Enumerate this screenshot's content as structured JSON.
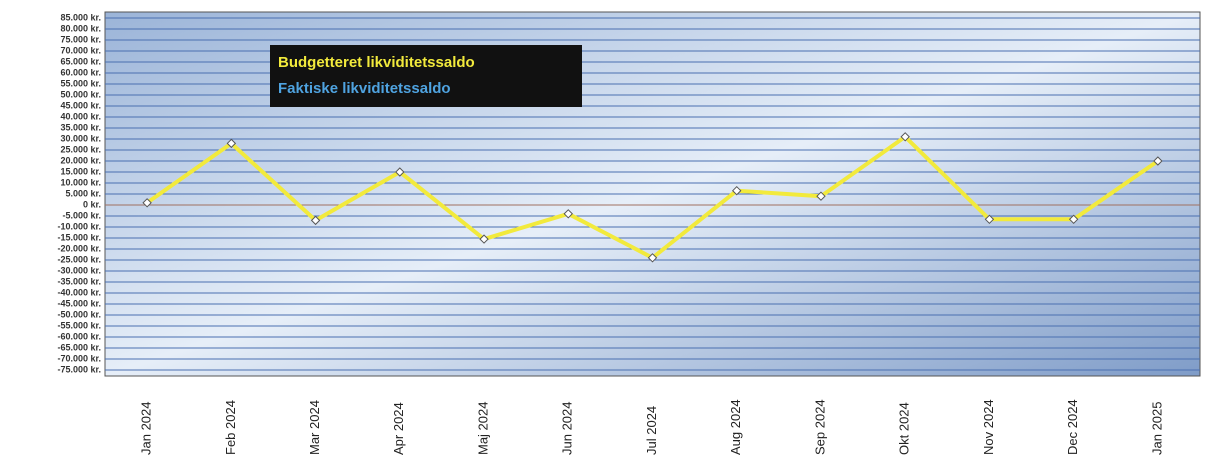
{
  "chart_data": {
    "type": "line",
    "categories": [
      "Jan 2024",
      "Feb 2024",
      "Mar 2024",
      "Apr 2024",
      "Maj 2024",
      "Jun 2024",
      "Jul 2024",
      "Aug 2024",
      "Sep 2024",
      "Okt 2024",
      "Nov 2024",
      "Dec 2024",
      "Jan 2025"
    ],
    "series": [
      {
        "name": "Budgetteret likviditetssaldo",
        "color": "#f2ea3c",
        "values": [
          1000,
          28000,
          -7000,
          15000,
          -15500,
          -4000,
          -24000,
          6500,
          4000,
          31000,
          -6500,
          -6500,
          20000
        ]
      },
      {
        "name": "Faktiske likviditetssaldo",
        "color": "#4fa3e0",
        "values": [
          null,
          null,
          null,
          null,
          null,
          null,
          null,
          null,
          null,
          null,
          null,
          null,
          null
        ]
      }
    ],
    "ylim": [
      -75000,
      85000
    ],
    "yticks": [
      {
        "value": 85000,
        "label": "85.000 kr."
      },
      {
        "value": 80000,
        "label": "80.000 kr."
      },
      {
        "value": 75000,
        "label": "75.000 kr."
      },
      {
        "value": 70000,
        "label": "70.000 kr."
      },
      {
        "value": 65000,
        "label": "65.000 kr."
      },
      {
        "value": 60000,
        "label": "60.000 kr."
      },
      {
        "value": 55000,
        "label": "55.000 kr."
      },
      {
        "value": 50000,
        "label": "50.000 kr."
      },
      {
        "value": 45000,
        "label": "45.000 kr."
      },
      {
        "value": 40000,
        "label": "40.000 kr."
      },
      {
        "value": 35000,
        "label": "35.000 kr."
      },
      {
        "value": 30000,
        "label": "30.000 kr."
      },
      {
        "value": 25000,
        "label": "25.000 kr."
      },
      {
        "value": 20000,
        "label": "20.000 kr."
      },
      {
        "value": 15000,
        "label": "15.000 kr."
      },
      {
        "value": 10000,
        "label": "10.000 kr."
      },
      {
        "value": 5000,
        "label": "5.000 kr."
      },
      {
        "value": 0,
        "label": "0 kr."
      },
      {
        "value": -5000,
        "label": "-5.000 kr."
      },
      {
        "value": -10000,
        "label": "-10.000 kr."
      },
      {
        "value": -15000,
        "label": "-15.000 kr."
      },
      {
        "value": -20000,
        "label": "-20.000 kr."
      },
      {
        "value": -25000,
        "label": "-25.000 kr."
      },
      {
        "value": -30000,
        "label": "-30.000 kr."
      },
      {
        "value": -35000,
        "label": "-35.000 kr."
      },
      {
        "value": -40000,
        "label": "-40.000 kr."
      },
      {
        "value": -45000,
        "label": "-45.000 kr."
      },
      {
        "value": -50000,
        "label": "-50.000 kr."
      },
      {
        "value": -55000,
        "label": "-55.000 kr."
      },
      {
        "value": -60000,
        "label": "-60.000 kr."
      },
      {
        "value": -65000,
        "label": "-65.000 kr."
      },
      {
        "value": -70000,
        "label": "-70.000 kr."
      },
      {
        "value": -75000,
        "label": "-75.000 kr."
      }
    ],
    "grid": true
  }
}
